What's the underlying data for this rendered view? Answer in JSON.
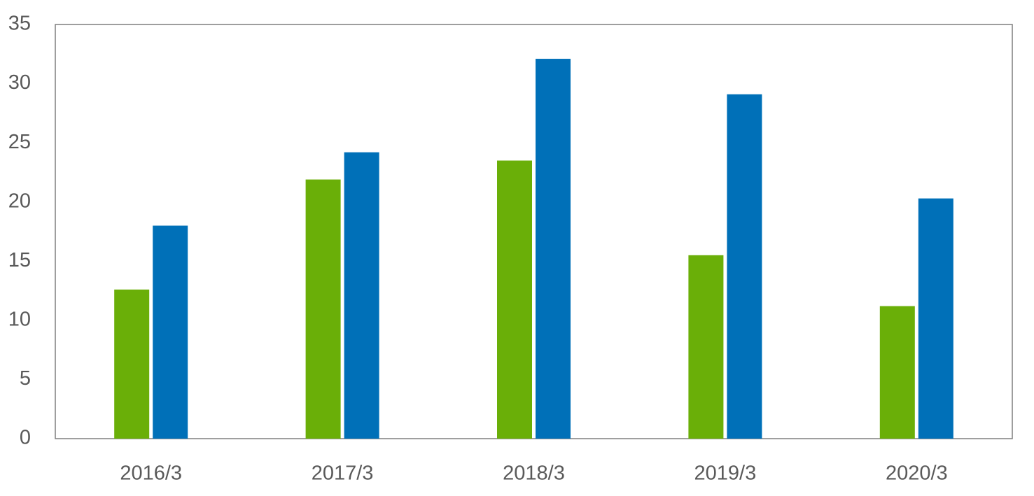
{
  "chart_data": {
    "type": "bar",
    "categories": [
      "2016/3",
      "2017/3",
      "2018/3",
      "2019/3",
      "2020/3"
    ],
    "series": [
      {
        "color": "#6aaf08",
        "values": [
          12.6,
          21.9,
          23.5,
          15.5,
          11.2
        ]
      },
      {
        "color": "#0070b8",
        "values": [
          18.0,
          24.2,
          32.1,
          29.1,
          20.3
        ]
      }
    ],
    "ylim": [
      0,
      35
    ],
    "yticks": [
      0,
      5,
      10,
      15,
      20,
      25,
      30,
      35
    ],
    "grid": false
  }
}
